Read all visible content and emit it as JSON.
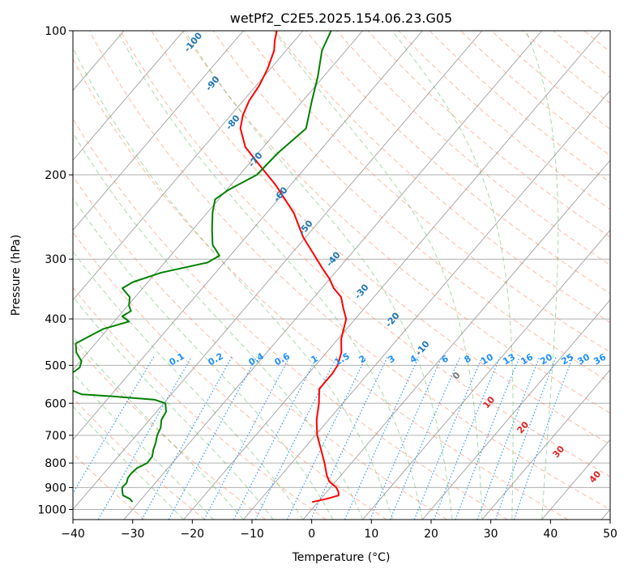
{
  "chart_data": {
    "type": "skew-t",
    "title": "wetPf2_C2E5.2025.154.06.23.G05",
    "xlabel": "Temperature (°C)",
    "ylabel": "Pressure (hPa)",
    "xlim": [
      -40,
      50
    ],
    "ylim": [
      1050,
      100
    ],
    "y_scale": "log",
    "x_ticks": [
      "−40",
      "−30",
      "−20",
      "−10",
      "0",
      "10",
      "20",
      "30",
      "40",
      "50"
    ],
    "y_ticks": [
      100,
      200,
      300,
      400,
      500,
      600,
      700,
      800,
      900,
      1000
    ],
    "grid": true,
    "colors": {
      "temperature": "#ff0000",
      "dewpoint": "#008000",
      "isotherm": "#999999",
      "dry_adiabat": "#ff7f50",
      "moist_adiabat": "#2ca02c",
      "mixing_ratio": "#1e90ff",
      "isotherm_label_neg": "#1f77b4",
      "isotherm_label_pos": "#d62728"
    },
    "isotherm_labels": [
      {
        "text": "-100",
        "value": -100
      },
      {
        "text": "-90",
        "value": -90
      },
      {
        "text": "-80",
        "value": -80
      },
      {
        "text": "-70",
        "value": -70
      },
      {
        "text": "-60",
        "value": -60
      },
      {
        "text": "-50",
        "value": -50
      },
      {
        "text": "-40",
        "value": -40
      },
      {
        "text": "-30",
        "value": -30
      },
      {
        "text": "-20",
        "value": -20
      },
      {
        "text": "-10",
        "value": -10
      },
      {
        "text": "0",
        "value": 0
      },
      {
        "text": "10",
        "value": 10
      },
      {
        "text": "20",
        "value": 20
      },
      {
        "text": "30",
        "value": 30
      },
      {
        "text": "40",
        "value": 40
      }
    ],
    "mixing_ratio_labels": [
      "0.1",
      "0.2",
      "0.4",
      "0.6",
      "1",
      "1.5",
      "2",
      "3",
      "4",
      "6",
      "8",
      "10",
      "13",
      "16",
      "20",
      "25",
      "30",
      "36"
    ],
    "series": [
      {
        "name": "temperature",
        "pressure": [
          965,
          950,
          935,
          920,
          900,
          875,
          850,
          800,
          750,
          700,
          650,
          600,
          560,
          520,
          500,
          470,
          440,
          400,
          380,
          360,
          345,
          330,
          315,
          300,
          270,
          240,
          210,
          190,
          175,
          160,
          150,
          140,
          130,
          120,
          110,
          105,
          100
        ],
        "temperature": [
          -1,
          1,
          2.5,
          2,
          1,
          -1,
          -2.3,
          -4.5,
          -7,
          -9.7,
          -12,
          -14,
          -16,
          -16,
          -16.3,
          -17.5,
          -19.5,
          -21.5,
          -23.5,
          -25.5,
          -28,
          -30,
          -32.5,
          -35,
          -40.4,
          -45.5,
          -52.5,
          -58.3,
          -63,
          -66.5,
          -68,
          -69,
          -69.5,
          -70.5,
          -72,
          -73.3,
          -74.4
        ]
      },
      {
        "name": "dewpoint",
        "pressure": [
          965,
          950,
          935,
          920,
          900,
          880,
          860,
          840,
          820,
          800,
          775,
          750,
          725,
          700,
          675,
          650,
          625,
          600,
          590,
          580,
          575,
          560,
          545,
          530,
          515,
          505,
          490,
          470,
          450,
          420,
          405,
          395,
          385,
          375,
          360,
          345,
          335,
          320,
          305,
          295,
          280,
          260,
          240,
          225,
          215,
          200,
          180,
          160,
          140,
          125,
          110,
          100
        ],
        "dewpoint": [
          -31.1,
          -32,
          -33.6,
          -34.2,
          -34.9,
          -34.8,
          -35.3,
          -35.4,
          -35.2,
          -34.2,
          -34.3,
          -35.1,
          -35.7,
          -36.5,
          -37,
          -38,
          -38.4,
          -39.7,
          -42,
          -50,
          -55,
          -58,
          -62.2,
          -62.6,
          -59.5,
          -59.2,
          -59.8,
          -61.9,
          -63.3,
          -60.8,
          -57.5,
          -59.4,
          -58.7,
          -59.8,
          -60.9,
          -63.4,
          -62.5,
          -59.1,
          -52.8,
          -51.8,
          -54.5,
          -56.8,
          -59.1,
          -60.6,
          -59.7,
          -57.1,
          -56.7,
          -55.5,
          -58.5,
          -60.9,
          -64,
          -65.3
        ]
      }
    ]
  }
}
